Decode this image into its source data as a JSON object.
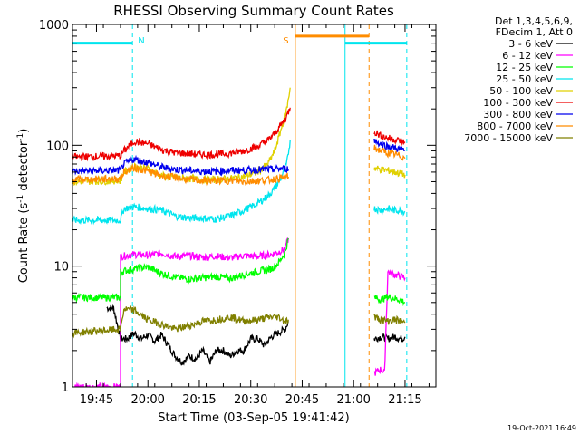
{
  "chart_data": {
    "type": "line",
    "title": "RHESSI Observing Summary Count Rates",
    "xlabel": "Start Time (03-Sep-05 19:41:42)",
    "ylabel_main": "Count Rate (s",
    "ylabel_sup1": "-1",
    "ylabel_mid": " detector",
    "ylabel_sup2": "-1",
    "ylabel_end": ")",
    "yscale": "log",
    "ylim": [
      1,
      1000
    ],
    "xlim_min": [
      -4,
      102
    ],
    "x_ticks": [
      {
        "min": 3,
        "label": "19:45"
      },
      {
        "min": 18,
        "label": "20:00"
      },
      {
        "min": 33,
        "label": "20:15"
      },
      {
        "min": 48,
        "label": "20:30"
      },
      {
        "min": 63,
        "label": "20:45"
      },
      {
        "min": 78,
        "label": "21:00"
      },
      {
        "min": 93,
        "label": "21:15"
      }
    ],
    "y_ticks": [
      {
        "value": 1,
        "label": "1"
      },
      {
        "value": 10,
        "label": "10"
      },
      {
        "value": 100,
        "label": "100"
      },
      {
        "value": 1000,
        "label": "1000"
      }
    ],
    "legend_header": [
      "Det 1,3,4,5,6,9,",
      "FDecim 1, Att 0"
    ],
    "timestamp": "19-Oct-2021 16:49",
    "annotations": [
      {
        "label": "N",
        "min": 13.5,
        "color": "#00e5ee"
      },
      {
        "label": "S",
        "min": 59.5,
        "color": "#ff8c00"
      }
    ],
    "night_intervals": [
      {
        "start": -4,
        "end": 13.5,
        "level": 700,
        "color": "#00e5ee"
      },
      {
        "start": 75.5,
        "end": 93.5,
        "level": 700,
        "color": "#00e5ee"
      }
    ],
    "saa_intervals": [
      {
        "start": 61,
        "end": 82.5,
        "level": 800,
        "color": "#ff8c00"
      }
    ],
    "vertical_lines": [
      {
        "min": -4,
        "color": "#00e5ee",
        "style": "solid"
      },
      {
        "min": 13.5,
        "color": "#00e5ee",
        "style": "dashed"
      },
      {
        "min": 61,
        "color": "#ff8c00",
        "style": "solid"
      },
      {
        "min": 75.5,
        "color": "#00e5ee",
        "style": "solid"
      },
      {
        "min": 82.5,
        "color": "#ff8c00",
        "style": "dashed"
      },
      {
        "min": 93.5,
        "color": "#00e5ee",
        "style": "dashed"
      }
    ],
    "series": [
      {
        "name": "3 - 6 keV",
        "color": "#000000",
        "points": [
          [
            6,
            4.5
          ],
          [
            8,
            4.5
          ],
          [
            10,
            2.5
          ],
          [
            12,
            2.5
          ],
          [
            14,
            2.8
          ],
          [
            16,
            2.5
          ],
          [
            18,
            2.7
          ],
          [
            20,
            2.4
          ],
          [
            22,
            2.7
          ],
          [
            24,
            2.2
          ],
          [
            26,
            1.8
          ],
          [
            28,
            1.6
          ],
          [
            30,
            1.8
          ],
          [
            32,
            1.7
          ],
          [
            34,
            2.0
          ],
          [
            36,
            1.6
          ],
          [
            38,
            2.0
          ],
          [
            40,
            2.0
          ],
          [
            42,
            1.8
          ],
          [
            44,
            2.0
          ],
          [
            46,
            2.0
          ],
          [
            48,
            2.5
          ],
          [
            50,
            2.5
          ],
          [
            52,
            2.2
          ],
          [
            54,
            2.6
          ],
          [
            56,
            2.8
          ],
          [
            58,
            3.0
          ],
          [
            59,
            3.5
          ]
        ],
        "points_b": [
          [
            84,
            2.5
          ],
          [
            86,
            2.6
          ],
          [
            88,
            2.5
          ],
          [
            90,
            2.6
          ],
          [
            92,
            2.5
          ],
          [
            93,
            2.6
          ]
        ]
      },
      {
        "name": "6 - 12 keV",
        "color": "#ff00ff",
        "points": [
          [
            -4,
            1.0
          ],
          [
            10,
            1.0
          ],
          [
            10,
            12
          ],
          [
            14,
            12.5
          ],
          [
            18,
            12.3
          ],
          [
            22,
            12.8
          ],
          [
            26,
            12
          ],
          [
            30,
            12.2
          ],
          [
            34,
            11.8
          ],
          [
            38,
            12.1
          ],
          [
            42,
            11.7
          ],
          [
            46,
            12.2
          ],
          [
            50,
            12.0
          ],
          [
            54,
            12.5
          ],
          [
            56,
            13
          ],
          [
            58,
            14
          ],
          [
            59,
            17
          ]
        ],
        "points_b": [
          [
            84,
            1.3
          ],
          [
            86,
            1.4
          ],
          [
            87,
            1.3
          ],
          [
            88,
            9
          ],
          [
            90,
            8.5
          ],
          [
            92,
            8.2
          ],
          [
            93,
            8.0
          ]
        ]
      },
      {
        "name": "12 - 25 keV",
        "color": "#00ff00",
        "points": [
          [
            -4,
            5.5
          ],
          [
            10,
            5.5
          ],
          [
            10,
            9
          ],
          [
            14,
            9.5
          ],
          [
            18,
            9.8
          ],
          [
            22,
            8.7
          ],
          [
            26,
            8.1
          ],
          [
            30,
            7.8
          ],
          [
            34,
            8.0
          ],
          [
            38,
            8.2
          ],
          [
            42,
            7.9
          ],
          [
            46,
            8.5
          ],
          [
            50,
            9.0
          ],
          [
            54,
            9.5
          ],
          [
            56,
            10.5
          ],
          [
            58,
            13
          ],
          [
            59,
            17
          ]
        ],
        "points_b": [
          [
            84,
            5.5
          ],
          [
            86,
            5.3
          ],
          [
            88,
            5.6
          ],
          [
            90,
            5.4
          ],
          [
            92,
            5.2
          ],
          [
            93,
            5.0
          ]
        ]
      },
      {
        "name": "25 - 50 keV",
        "color": "#00e5ee",
        "points": [
          [
            -4,
            24
          ],
          [
            10,
            24
          ],
          [
            11,
            30
          ],
          [
            14,
            31
          ],
          [
            18,
            30
          ],
          [
            22,
            29
          ],
          [
            26,
            26
          ],
          [
            30,
            25
          ],
          [
            34,
            25
          ],
          [
            38,
            24.5
          ],
          [
            42,
            26
          ],
          [
            46,
            29
          ],
          [
            50,
            33
          ],
          [
            53,
            38
          ],
          [
            55,
            44
          ],
          [
            57,
            55
          ],
          [
            58.5,
            70
          ],
          [
            59.5,
            110
          ]
        ],
        "points_b": [
          [
            84,
            30
          ],
          [
            86,
            29
          ],
          [
            88,
            30
          ],
          [
            90,
            29
          ],
          [
            92,
            29
          ],
          [
            93,
            28
          ]
        ]
      },
      {
        "name": "50 - 100 keV",
        "color": "#e0d000",
        "points": [
          [
            -4,
            50
          ],
          [
            10,
            51
          ],
          [
            11,
            60
          ],
          [
            14,
            67
          ],
          [
            18,
            64
          ],
          [
            22,
            56
          ],
          [
            26,
            54
          ],
          [
            30,
            53
          ],
          [
            34,
            52
          ],
          [
            38,
            52
          ],
          [
            42,
            53
          ],
          [
            46,
            55
          ],
          [
            50,
            60
          ],
          [
            53,
            70
          ],
          [
            55,
            90
          ],
          [
            57,
            140
          ],
          [
            58.5,
            200
          ],
          [
            59.5,
            300
          ]
        ],
        "points_b": [
          [
            84,
            65
          ],
          [
            86,
            63
          ],
          [
            88,
            62
          ],
          [
            90,
            60
          ],
          [
            92,
            58
          ],
          [
            93,
            57
          ]
        ]
      },
      {
        "name": "100 - 300 keV",
        "color": "#ee0000",
        "points": [
          [
            -4,
            80
          ],
          [
            10,
            82
          ],
          [
            11,
            90
          ],
          [
            14,
            108
          ],
          [
            18,
            103
          ],
          [
            22,
            92
          ],
          [
            26,
            87
          ],
          [
            30,
            85
          ],
          [
            34,
            84
          ],
          [
            38,
            84
          ],
          [
            42,
            86
          ],
          [
            46,
            90
          ],
          [
            50,
            98
          ],
          [
            53,
            110
          ],
          [
            55,
            125
          ],
          [
            57,
            150
          ],
          [
            58.5,
            175
          ],
          [
            59.5,
            205
          ]
        ],
        "points_b": [
          [
            84,
            130
          ],
          [
            86,
            120
          ],
          [
            88,
            115
          ],
          [
            90,
            112
          ],
          [
            92,
            108
          ],
          [
            93,
            105
          ]
        ]
      },
      {
        "name": "300 - 800 keV",
        "color": "#0000ee",
        "points": [
          [
            -4,
            61
          ],
          [
            10,
            62
          ],
          [
            11,
            70
          ],
          [
            14,
            77
          ],
          [
            18,
            72
          ],
          [
            22,
            66
          ],
          [
            26,
            63
          ],
          [
            30,
            62
          ],
          [
            34,
            61
          ],
          [
            38,
            61
          ],
          [
            42,
            62
          ],
          [
            46,
            62
          ],
          [
            50,
            63
          ],
          [
            54,
            63
          ],
          [
            56,
            64
          ],
          [
            58,
            64
          ],
          [
            59,
            64
          ]
        ],
        "points_b": [
          [
            84,
            110
          ],
          [
            86,
            102
          ],
          [
            88,
            98
          ],
          [
            90,
            95
          ],
          [
            92,
            92
          ],
          [
            93,
            90
          ]
        ]
      },
      {
        "name": "800 - 7000 keV",
        "color": "#ff8c00",
        "points": [
          [
            -4,
            52
          ],
          [
            10,
            53
          ],
          [
            11,
            60
          ],
          [
            14,
            65
          ],
          [
            18,
            61
          ],
          [
            22,
            56
          ],
          [
            26,
            54
          ],
          [
            30,
            52
          ],
          [
            34,
            51
          ],
          [
            38,
            51
          ],
          [
            42,
            51
          ],
          [
            46,
            50
          ],
          [
            50,
            51
          ],
          [
            54,
            52
          ],
          [
            56,
            53
          ],
          [
            58,
            54
          ],
          [
            59,
            55
          ]
        ],
        "points_b": [
          [
            84,
            95
          ],
          [
            86,
            90
          ],
          [
            88,
            86
          ],
          [
            90,
            84
          ],
          [
            92,
            81
          ],
          [
            93,
            78
          ]
        ]
      },
      {
        "name": "7000 - 15000 keV",
        "color": "#808000",
        "points": [
          [
            -4,
            2.8
          ],
          [
            10,
            3.0
          ],
          [
            11,
            4.4
          ],
          [
            14,
            4.3
          ],
          [
            18,
            3.6
          ],
          [
            22,
            3.3
          ],
          [
            26,
            3.0
          ],
          [
            30,
            3.2
          ],
          [
            34,
            3.5
          ],
          [
            38,
            3.6
          ],
          [
            42,
            3.8
          ],
          [
            46,
            3.5
          ],
          [
            50,
            3.6
          ],
          [
            54,
            3.8
          ],
          [
            56,
            3.8
          ],
          [
            58,
            3.5
          ],
          [
            59,
            3.6
          ]
        ],
        "points_b": [
          [
            84,
            3.8
          ],
          [
            86,
            3.6
          ],
          [
            88,
            3.5
          ],
          [
            90,
            3.6
          ],
          [
            92,
            3.5
          ],
          [
            93,
            3.4
          ]
        ]
      }
    ]
  }
}
